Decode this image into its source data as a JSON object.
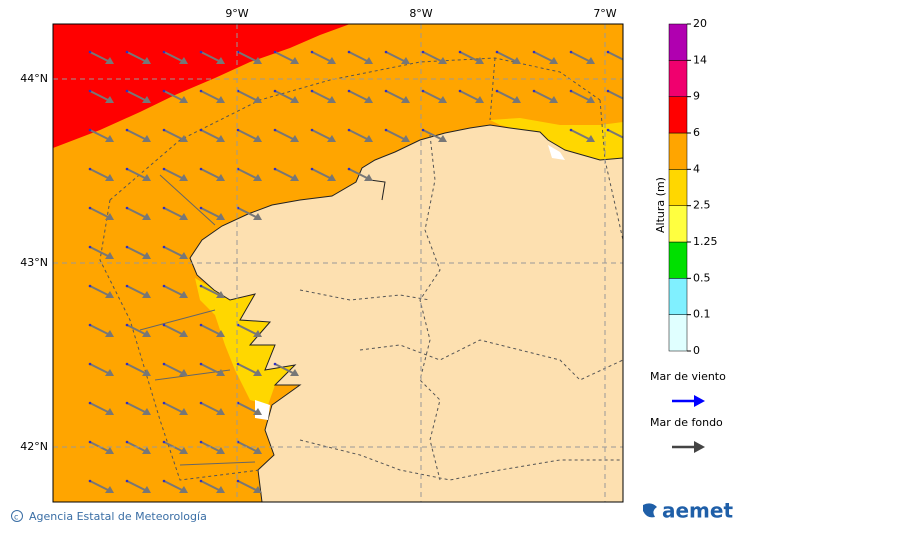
{
  "map": {
    "lon_labels": [
      "9°W",
      "8°W",
      "7°W"
    ],
    "lat_labels": [
      "44°N",
      "43°N",
      "42°N"
    ]
  },
  "colorbar": {
    "label": "Altura (m)",
    "ticks": [
      0,
      0.1,
      0.5,
      1.25,
      2.5,
      4,
      6,
      9,
      14,
      20
    ],
    "colors": [
      "#e0ffff",
      "#80f0ff",
      "#00e000",
      "#ffff40",
      "#ffd700",
      "#ffa500",
      "#ff0000",
      "#f0006e",
      "#b000b0"
    ]
  },
  "legend": [
    {
      "label": "Mar de viento",
      "color": "#0000ff"
    },
    {
      "label": "Mar de fondo",
      "color": "#444444"
    }
  ],
  "footer": {
    "credit": "Agencia Estatal de Meteorología",
    "logo": "aemet"
  }
}
